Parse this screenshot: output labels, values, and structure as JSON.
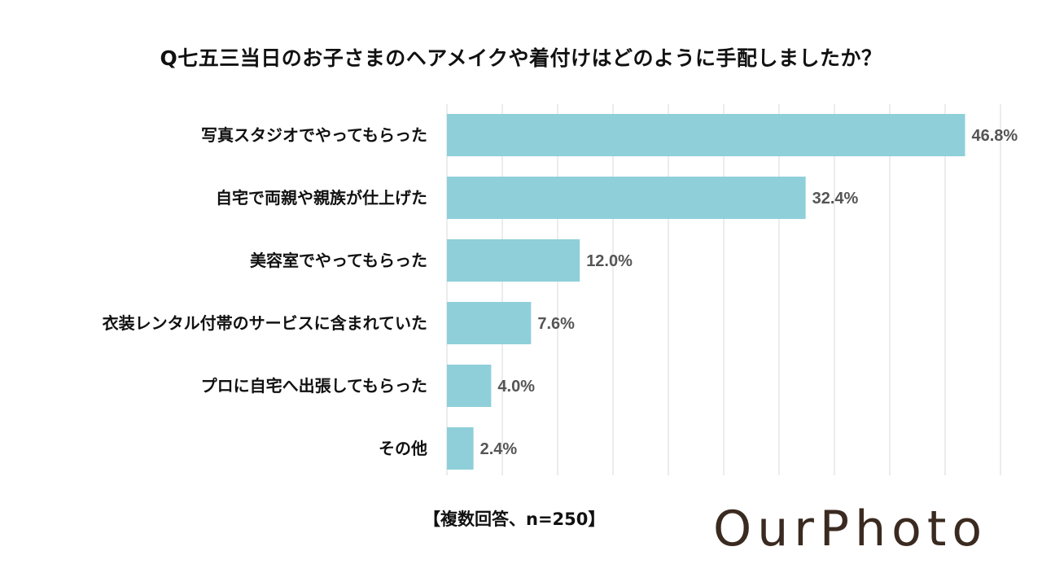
{
  "chart_data": {
    "type": "bar",
    "orientation": "horizontal",
    "title": "Q七五三当日のお子さまのヘアメイクや着付けはどのように手配しましたか？",
    "categories": [
      "写真スタジオでやってもらった",
      "自宅で両親や親族が仕上げた",
      "美容室でやってもらった",
      "衣装レンタル付帯のサービスに含まれていた",
      "プロに自宅へ出張してもらった",
      "その他"
    ],
    "values": [
      46.8,
      32.4,
      12.0,
      7.6,
      4.0,
      2.4
    ],
    "value_labels": [
      "46.8%",
      "32.4%",
      "12.0%",
      "7.6%",
      "4.0%",
      "2.4%"
    ],
    "xlim": [
      0,
      50
    ],
    "grid": true,
    "bar_color": "#8ecfda",
    "note": "【複数回答、n=250】"
  },
  "logo": {
    "text": "OurPhoto",
    "color": "#3a2a20"
  }
}
